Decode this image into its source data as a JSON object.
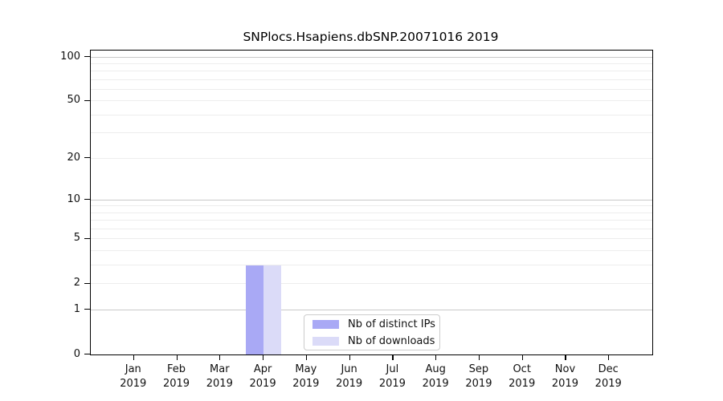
{
  "chart_data": {
    "type": "bar",
    "title": "SNPlocs.Hsapiens.dbSNP.20071016 2019",
    "x_year_label": "2019",
    "categories": [
      "Jan",
      "Feb",
      "Mar",
      "Apr",
      "May",
      "Jun",
      "Jul",
      "Aug",
      "Sep",
      "Oct",
      "Nov",
      "Dec"
    ],
    "series": [
      {
        "name": "Nb of distinct IPs",
        "color": "#a9a9f5",
        "values": [
          0,
          0,
          0,
          3,
          0,
          0,
          0,
          0,
          0,
          0,
          0,
          0
        ]
      },
      {
        "name": "Nb of downloads",
        "color": "#dbdbf8",
        "values": [
          0,
          0,
          0,
          3,
          0,
          0,
          0,
          0,
          0,
          0,
          0,
          0
        ]
      }
    ],
    "yscale": "log1p",
    "ylim": [
      0,
      100
    ],
    "ytick_labels": [
      0,
      1,
      2,
      5,
      10,
      20,
      50,
      100
    ],
    "major_gridlines": [
      1,
      10,
      100
    ],
    "minor_gridlines": [
      2,
      3,
      4,
      5,
      6,
      7,
      8,
      9,
      20,
      30,
      40,
      50,
      60,
      70,
      80,
      90
    ],
    "grid": true,
    "legend_position": "lower center",
    "colors": {
      "axis": "#000000",
      "major_grid": "#c9c9c9",
      "minor_grid": "#ededed",
      "tick_label": "#111111",
      "legend_border": "#cccccc",
      "background": "#ffffff"
    }
  }
}
